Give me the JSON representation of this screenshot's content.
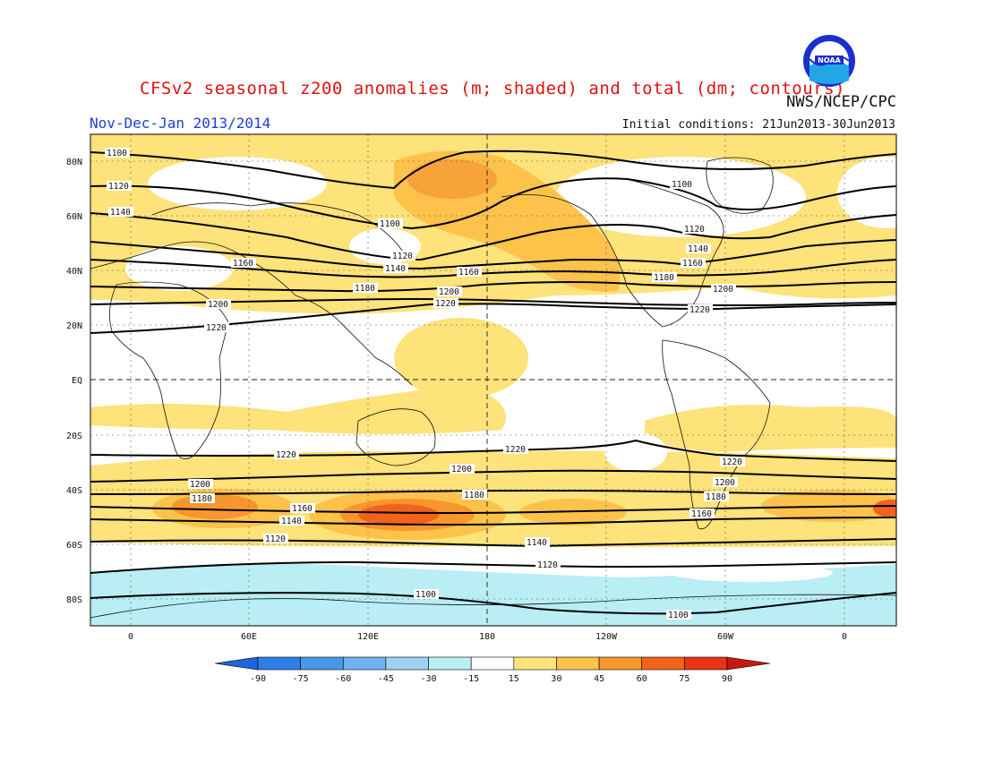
{
  "header": {
    "title": "CFSv2 seasonal z200 anomalies (m; shaded) and total (dm; contours)",
    "agency": "NWS/NCEP/CPC",
    "season": "Nov-Dec-Jan 2013/2014",
    "initial_conditions": "Initial conditions: 21Jun2013-30Jun2013",
    "logo_text": "NOAA"
  },
  "axes": {
    "lat_labels": [
      "80N",
      "60N",
      "40N",
      "20N",
      "EQ",
      "20S",
      "40S",
      "60S",
      "80S"
    ],
    "lon_labels": [
      "0",
      "60E",
      "120E",
      "180",
      "120W",
      "60W",
      "0"
    ]
  },
  "colorbar": {
    "ticks": [
      "-90",
      "-75",
      "-60",
      "-45",
      "-30",
      "-15",
      "15",
      "30",
      "45",
      "60",
      "75",
      "90"
    ],
    "colors": [
      "#1e64dc",
      "#2f7de6",
      "#4b98ea",
      "#6fb3ee",
      "#9ed2f2",
      "#b8eef4",
      "#ffffff",
      "#fee27a",
      "#fcc24a",
      "#f8962e",
      "#f2621c",
      "#e83414",
      "#c8180e"
    ]
  },
  "contour_labels": [
    {
      "text": "1100"
    },
    {
      "text": "1120"
    },
    {
      "text": "1140"
    },
    {
      "text": "1160"
    },
    {
      "text": "1180"
    },
    {
      "text": "1200"
    },
    {
      "text": "1220"
    }
  ]
}
